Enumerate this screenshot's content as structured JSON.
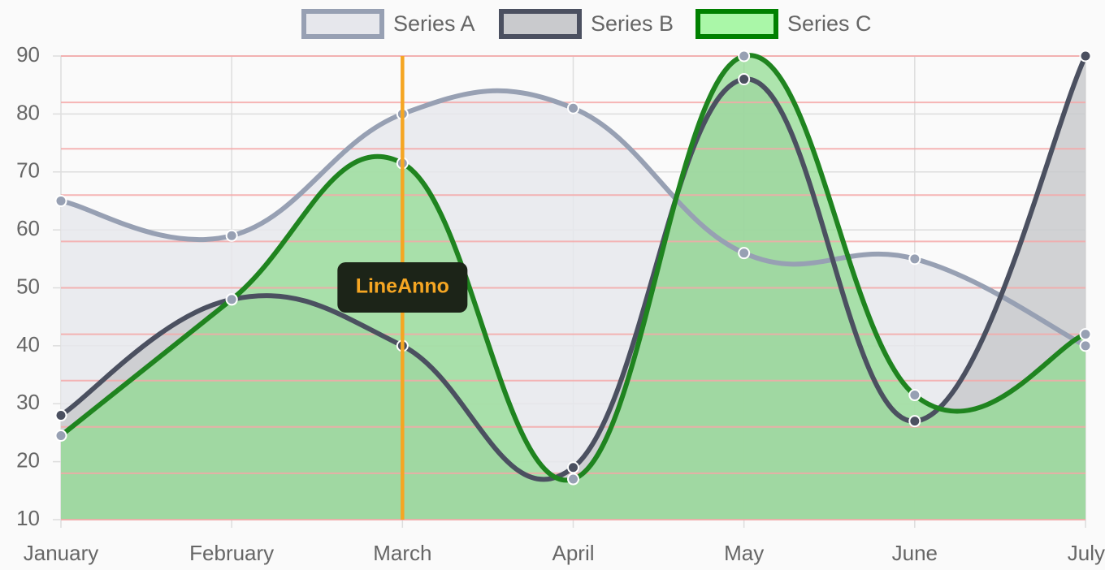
{
  "chart_data": {
    "type": "area",
    "title": "",
    "xlabel": "",
    "ylabel": "",
    "categories": [
      "January",
      "February",
      "March",
      "April",
      "May",
      "June",
      "July"
    ],
    "ylim": [
      10,
      90
    ],
    "yticks": [
      10,
      20,
      30,
      40,
      50,
      60,
      70,
      80,
      90
    ],
    "grid": true,
    "legend_position": "top",
    "curve": "smooth",
    "series": [
      {
        "name": "Series A",
        "values": [
          65,
          59,
          80,
          81,
          56,
          55,
          40
        ],
        "stroke": "#97a0b3",
        "fill": "#e6e7ec",
        "point_fill": "#97a0b3"
      },
      {
        "name": "Series B",
        "values": [
          28,
          48,
          40,
          19,
          86,
          27,
          90
        ],
        "stroke": "#4b5060",
        "fill": "#c9cacd",
        "point_fill": "#4b5060"
      },
      {
        "name": "Series C",
        "values": [
          24.5,
          48,
          71.5,
          17,
          90,
          31.5,
          42
        ],
        "stroke": "#1f841f",
        "fill": "#8fdb8f",
        "fill_opacity": 0.72,
        "point_fill": "#97a0b3",
        "legend_fill": "#aaf7a8",
        "legend_stroke": "#008000"
      }
    ],
    "annotation_hlines": {
      "color": "#f4a8a8",
      "values": [
        90,
        82,
        74,
        66,
        58,
        50,
        42,
        34,
        26,
        18,
        10
      ]
    },
    "annotation_vline": {
      "x": "March",
      "color": "#f5a623",
      "label": "LineAnno",
      "label_color": "#f5a623",
      "label_background": "#1c2418"
    }
  }
}
